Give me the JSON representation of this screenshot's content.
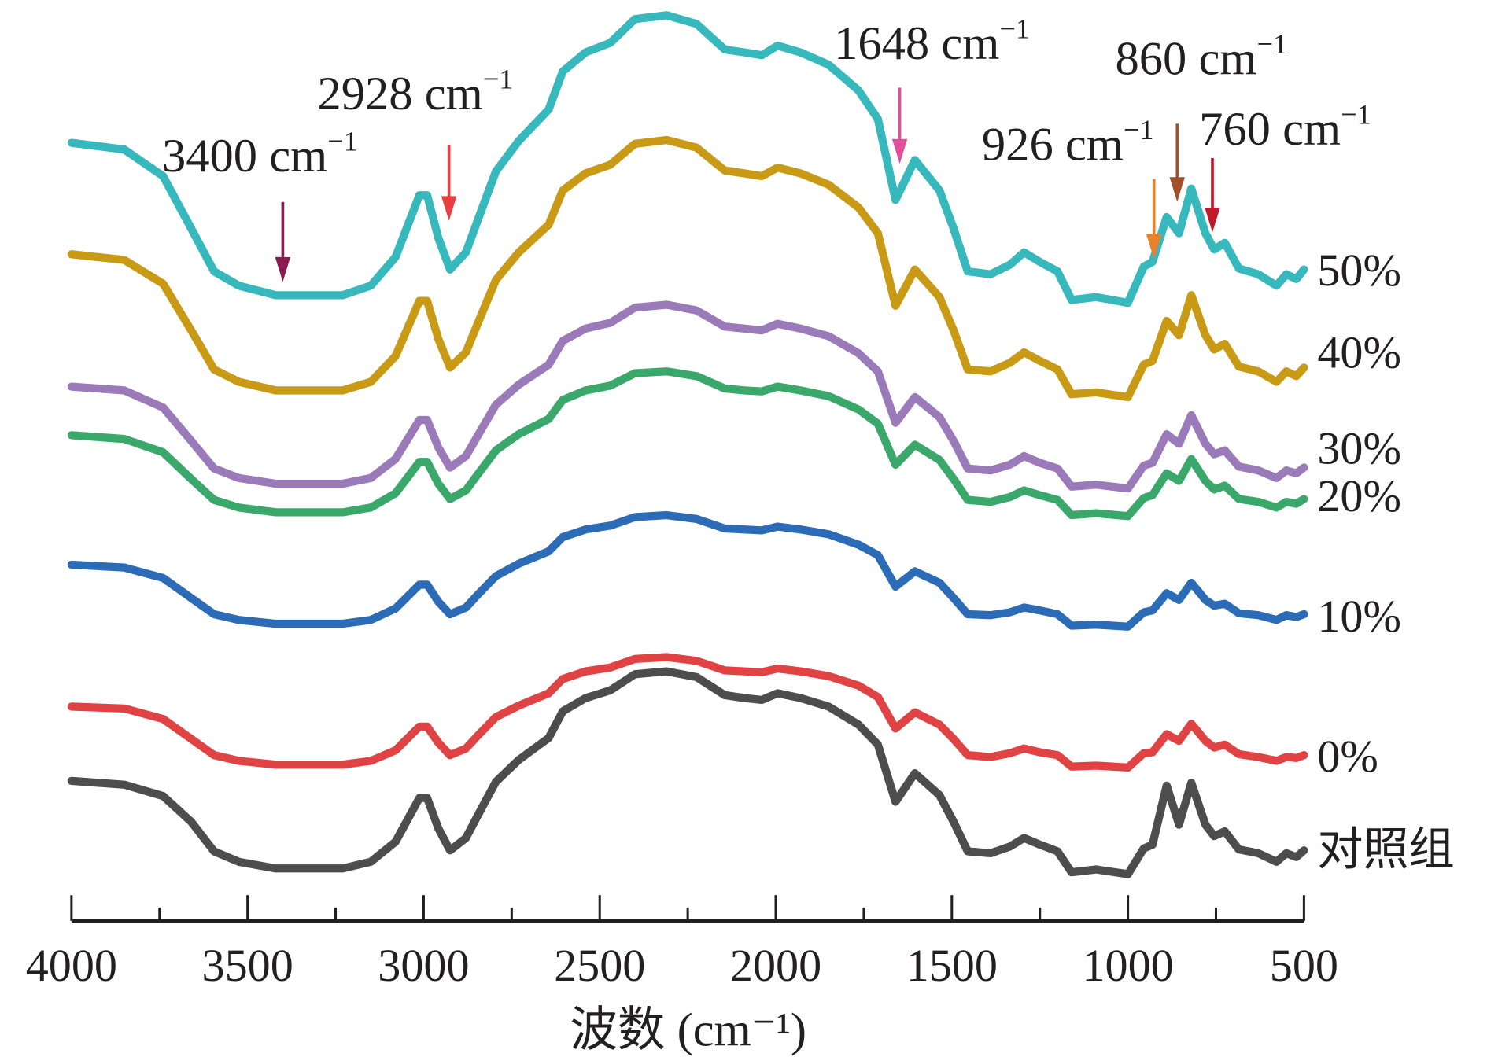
{
  "chart_data": {
    "type": "line",
    "title": "",
    "xlabel": "波数 (cm⁻¹)",
    "ylabel": "",
    "xlim": [
      4000,
      500
    ],
    "x_reversed": true,
    "grid": false,
    "y_axis_visible": false,
    "x_ticks": [
      "4000",
      "3500",
      "3000",
      "2500",
      "2000",
      "1500",
      "1000",
      "500"
    ],
    "x_tick_values": [
      4000,
      3500,
      3000,
      2500,
      2000,
      1500,
      1000,
      500
    ],
    "x_minor_tick_values": [
      3750,
      3250,
      2750,
      2250,
      1750,
      1250,
      750
    ],
    "y_units": "relative transmittance (a.u., stacked)",
    "x": [
      4000,
      3850,
      3740,
      3660,
      3595,
      3525,
      3420,
      3230,
      3150,
      3080,
      3012,
      2990,
      2958,
      2925,
      2880,
      2850,
      2795,
      2730,
      2645,
      2605,
      2540,
      2470,
      2400,
      2310,
      2225,
      2145,
      2090,
      2040,
      1995,
      1930,
      1850,
      1765,
      1710,
      1660,
      1605,
      1535,
      1495,
      1455,
      1390,
      1335,
      1295,
      1250,
      1200,
      1160,
      1090,
      1000,
      955,
      930,
      890,
      855,
      820,
      780,
      755,
      725,
      685,
      630,
      578,
      550,
      522,
      500
    ],
    "series": [
      {
        "name": "50%",
        "label": "50%",
        "color": "#37b8bc",
        "values": [
          85.0,
          84.3,
          81.5,
          76.0,
          71.5,
          70.0,
          69.0,
          69.0,
          70.0,
          73.0,
          79.5,
          79.5,
          75.0,
          71.7,
          73.5,
          76.5,
          82.0,
          85.2,
          88.5,
          92.5,
          94.5,
          95.5,
          98.0,
          98.4,
          97.5,
          94.8,
          94.5,
          94.2,
          95.2,
          94.5,
          93.2,
          90.5,
          87.5,
          79.0,
          83.2,
          80.0,
          76.0,
          71.5,
          71.2,
          72.2,
          73.5,
          72.5,
          71.5,
          68.5,
          68.8,
          68.2,
          72.0,
          72.5,
          77.2,
          75.5,
          80.2,
          75.5,
          73.8,
          74.5,
          71.8,
          71.2,
          70.0,
          71.2,
          70.7,
          71.7
        ]
      },
      {
        "name": "40%",
        "label": "40%",
        "color": "#c99a16",
        "values": [
          73.3,
          72.7,
          70.2,
          65.3,
          61.2,
          59.9,
          59.0,
          59.0,
          59.9,
          62.6,
          68.4,
          68.4,
          64.4,
          61.4,
          63.0,
          65.7,
          70.6,
          73.5,
          76.4,
          80.0,
          81.8,
          82.7,
          84.9,
          85.3,
          84.5,
          82.1,
          81.8,
          81.5,
          82.4,
          81.8,
          80.6,
          78.2,
          75.5,
          67.9,
          71.7,
          68.8,
          65.3,
          61.2,
          61.0,
          61.9,
          63.0,
          62.1,
          61.2,
          58.6,
          58.8,
          58.3,
          61.7,
          62.1,
          66.3,
          64.8,
          69.0,
          64.8,
          63.3,
          63.9,
          61.5,
          61.0,
          59.9,
          61.0,
          60.5,
          61.4
        ]
      },
      {
        "name": "30%",
        "label": "30%",
        "color": "#9b7ab9",
        "values": [
          59.4,
          59.0,
          57.2,
          53.7,
          50.8,
          49.8,
          49.2,
          49.2,
          49.8,
          51.8,
          55.9,
          55.9,
          53.0,
          50.9,
          52.1,
          54.0,
          57.5,
          59.6,
          61.7,
          64.2,
          65.5,
          66.1,
          67.7,
          68.0,
          67.4,
          65.7,
          65.5,
          65.3,
          66.0,
          65.5,
          64.7,
          62.9,
          61.0,
          55.6,
          58.3,
          56.2,
          53.7,
          50.8,
          50.6,
          51.2,
          52.1,
          51.4,
          50.8,
          48.9,
          49.1,
          48.7,
          51.1,
          51.4,
          54.4,
          53.4,
          56.4,
          53.4,
          52.3,
          52.7,
          51.0,
          50.6,
          49.8,
          50.6,
          50.3,
          50.9
        ]
      },
      {
        "name": "20%",
        "label": "20%",
        "color": "#3aa86a",
        "values": [
          54.3,
          53.9,
          52.5,
          49.7,
          47.5,
          46.7,
          46.2,
          46.2,
          46.7,
          48.2,
          51.5,
          51.5,
          49.2,
          47.6,
          48.5,
          50.0,
          52.7,
          54.4,
          56.0,
          58.0,
          59.0,
          59.5,
          60.8,
          61.0,
          60.5,
          59.2,
          59.0,
          58.9,
          59.4,
          59.0,
          58.4,
          57.0,
          55.5,
          51.2,
          53.3,
          51.7,
          49.7,
          47.5,
          47.3,
          47.8,
          48.5,
          48.0,
          47.5,
          45.9,
          46.1,
          45.8,
          47.7,
          48.0,
          50.3,
          49.5,
          51.8,
          49.5,
          48.6,
          49.0,
          47.6,
          47.3,
          46.7,
          47.3,
          47.1,
          47.6
        ]
      },
      {
        "name": "10%",
        "label": "10%",
        "color": "#2c6bb5",
        "values": [
          40.7,
          40.4,
          39.3,
          37.2,
          35.5,
          34.9,
          34.5,
          34.5,
          34.9,
          36.1,
          38.6,
          38.6,
          36.8,
          35.5,
          36.2,
          37.4,
          39.5,
          40.8,
          42.1,
          43.6,
          44.4,
          44.8,
          45.7,
          45.9,
          45.5,
          44.5,
          44.4,
          44.3,
          44.7,
          44.4,
          43.9,
          42.8,
          41.7,
          38.4,
          40.0,
          38.8,
          37.2,
          35.5,
          35.4,
          35.7,
          36.2,
          35.9,
          35.5,
          34.3,
          34.4,
          34.2,
          35.7,
          35.9,
          37.7,
          37.0,
          38.8,
          37.0,
          36.4,
          36.6,
          35.6,
          35.4,
          34.9,
          35.4,
          35.2,
          35.5
        ]
      },
      {
        "name": "0%",
        "label": "0%",
        "color": "#e04343",
        "values": [
          25.8,
          25.6,
          24.5,
          22.4,
          20.7,
          20.1,
          19.7,
          19.7,
          20.1,
          21.2,
          23.7,
          23.7,
          22.0,
          20.7,
          21.4,
          22.6,
          24.7,
          25.9,
          27.2,
          28.7,
          29.5,
          29.9,
          30.8,
          31.0,
          30.6,
          29.6,
          29.5,
          29.4,
          29.8,
          29.5,
          29.0,
          28.0,
          26.8,
          23.5,
          25.2,
          23.9,
          22.4,
          20.7,
          20.5,
          20.9,
          21.4,
          21.0,
          20.7,
          19.5,
          19.6,
          19.4,
          20.9,
          21.0,
          22.9,
          22.2,
          24.0,
          22.2,
          21.5,
          21.8,
          20.8,
          20.5,
          20.1,
          20.5,
          20.4,
          20.7
        ]
      },
      {
        "name": "对照组",
        "label": "对照组",
        "color": "#4d4d4d",
        "values": [
          18.0,
          17.6,
          16.4,
          13.7,
          10.6,
          9.5,
          8.8,
          8.8,
          9.5,
          11.6,
          16.2,
          16.2,
          13.0,
          10.7,
          12.0,
          14.1,
          17.9,
          20.2,
          22.5,
          25.3,
          26.7,
          27.5,
          29.2,
          29.5,
          28.9,
          27.0,
          26.7,
          26.5,
          27.2,
          26.7,
          25.8,
          23.9,
          21.8,
          15.8,
          18.8,
          16.5,
          13.7,
          10.6,
          10.4,
          11.1,
          12.0,
          11.3,
          10.6,
          8.4,
          8.7,
          8.2,
          10.9,
          11.3,
          17.5,
          13.4,
          17.8,
          13.4,
          12.2,
          12.7,
          10.8,
          10.4,
          9.5,
          10.4,
          10.0,
          10.7
        ]
      }
    ],
    "annotations": [
      {
        "wavenumber": 3400,
        "text": "3400 cm",
        "sup": "−1",
        "arrow_color": "#8b1a4f"
      },
      {
        "wavenumber": 2928,
        "text": "2928 cm",
        "sup": "−1",
        "arrow_color": "#e84040"
      },
      {
        "wavenumber": 1648,
        "text": "1648 cm",
        "sup": "−1",
        "arrow_color": "#e0509a"
      },
      {
        "wavenumber": 926,
        "text": "926 cm",
        "sup": "−1",
        "arrow_color": "#e8822a"
      },
      {
        "wavenumber": 860,
        "text": "860 cm",
        "sup": "−1",
        "arrow_color": "#a0522d"
      },
      {
        "wavenumber": 760,
        "text": "760 cm",
        "sup": "−1",
        "arrow_color": "#c01a2a"
      }
    ]
  }
}
